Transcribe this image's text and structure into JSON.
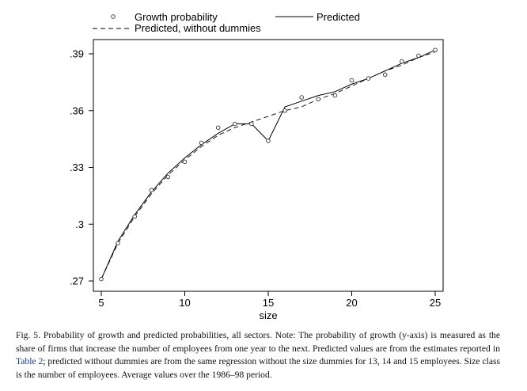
{
  "chart_data": {
    "type": "line",
    "xlabel": "size",
    "ylabel": "",
    "xlim": [
      5,
      25
    ],
    "ylim": [
      0.27,
      0.39
    ],
    "xticks": [
      5,
      10,
      15,
      20,
      25
    ],
    "xtick_labels": [
      "5",
      "10",
      "15",
      "20",
      "25"
    ],
    "yticks": [
      0.27,
      0.3,
      0.33,
      0.36,
      0.39
    ],
    "ytick_labels": [
      ".27",
      ".3",
      ".33",
      ".36",
      ".39"
    ],
    "grid": false,
    "legend_position": "top",
    "series": [
      {
        "name": "Growth probability",
        "style": "hollow-circle-markers",
        "color": "#333333",
        "x": [
          5,
          6,
          7,
          8,
          9,
          10,
          11,
          12,
          13,
          14,
          15,
          16,
          17,
          18,
          19,
          20,
          21,
          22,
          23,
          24,
          25
        ],
        "y": [
          0.271,
          0.29,
          0.304,
          0.318,
          0.325,
          0.333,
          0.343,
          0.351,
          0.353,
          0.353,
          0.344,
          0.36,
          0.367,
          0.366,
          0.368,
          0.376,
          0.377,
          0.379,
          0.386,
          0.389,
          0.392
        ]
      },
      {
        "name": "Predicted",
        "style": "solid",
        "color": "#000000",
        "x": [
          5,
          6,
          7,
          8,
          9,
          10,
          11,
          12,
          13,
          14,
          15,
          16,
          17,
          18,
          19,
          20,
          21,
          22,
          23,
          24,
          25
        ],
        "y": [
          0.271,
          0.291,
          0.305,
          0.317,
          0.327,
          0.335,
          0.342,
          0.348,
          0.353,
          0.353,
          0.344,
          0.362,
          0.365,
          0.368,
          0.37,
          0.374,
          0.377,
          0.381,
          0.385,
          0.388,
          0.392
        ]
      },
      {
        "name": "Predicted, without dummies",
        "style": "dashed",
        "color": "#000000",
        "x": [
          5,
          6,
          7,
          8,
          9,
          10,
          11,
          12,
          13,
          14,
          15,
          16,
          17,
          18,
          19,
          20,
          21,
          22,
          23,
          24,
          25
        ],
        "y": [
          0.271,
          0.29,
          0.304,
          0.316,
          0.326,
          0.334,
          0.341,
          0.347,
          0.351,
          0.354,
          0.357,
          0.36,
          0.362,
          0.366,
          0.369,
          0.373,
          0.377,
          0.381,
          0.384,
          0.388,
          0.391
        ]
      }
    ]
  },
  "caption": {
    "part1": "Fig. 5. Probability of growth and predicted probabilities, all sectors. Note: The probability of growth (y-axis) is measured as the share of firms that increase the number of employees from one year to the next. Predicted values are from the estimates reported in ",
    "link": "Table 2",
    "part2": "; predicted without dummies are from the same regression without the size dummies for 13, 14 and 15 employees. Size class is the number of employees. Average values over the 1986–98 period."
  }
}
